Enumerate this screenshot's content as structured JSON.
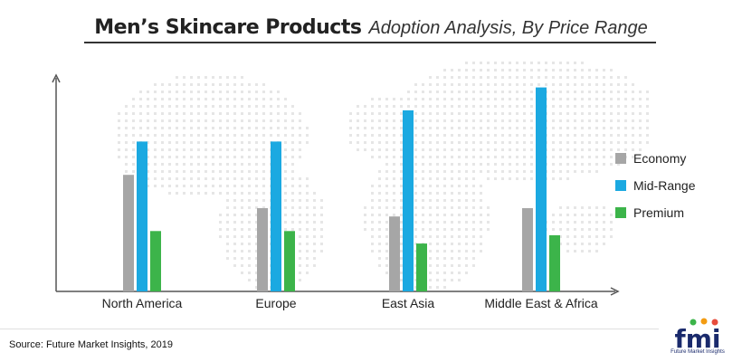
{
  "header": {
    "title": "Men’s Skincare Products",
    "subtitle": "Adoption Analysis, By Price Range"
  },
  "footer": {
    "source": "Source: Future Market Insights, 2019",
    "logo_text": "fmi",
    "logo_caption": "Future Market Insights"
  },
  "colors": {
    "economy": "#a6a6a6",
    "mid_range": "#1ba9e1",
    "premium": "#3cb44a",
    "axis": "#555555",
    "map_dots": "#e6e6e6",
    "logo_blue": "#1a2a6c"
  },
  "chart_data": {
    "type": "bar",
    "title": "Men’s Skincare Products Adoption Analysis, By Price Range",
    "categories": [
      "North America",
      "Europe",
      "East Asia",
      "Middle East & Africa"
    ],
    "series": [
      {
        "name": "Economy",
        "values": [
          56,
          40,
          36,
          40
        ]
      },
      {
        "name": "Mid-Range",
        "values": [
          72,
          72,
          87,
          98
        ]
      },
      {
        "name": "Premium",
        "values": [
          29,
          29,
          23,
          27
        ]
      }
    ],
    "ylim": [
      0,
      100
    ],
    "grid": false,
    "legend": "right",
    "y_ticks_shown": false
  }
}
